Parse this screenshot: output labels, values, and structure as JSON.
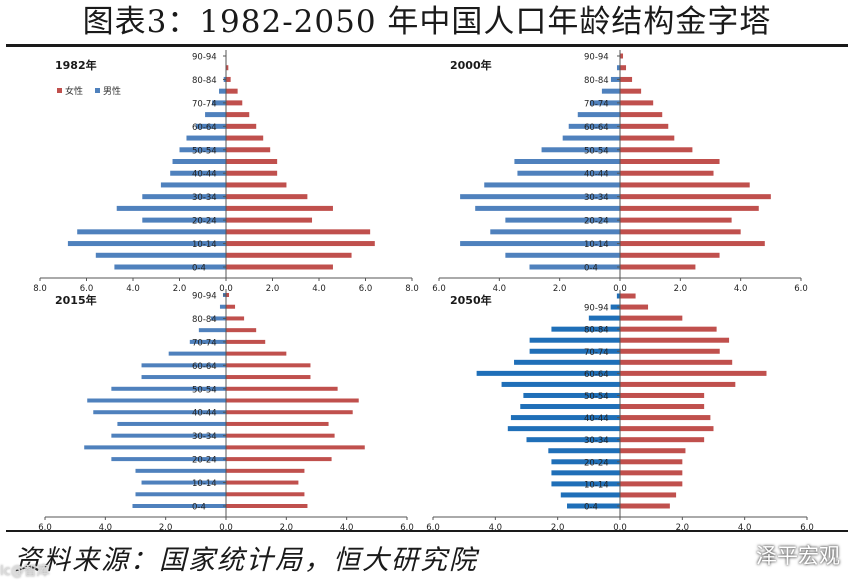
{
  "title": "图表3：1982-2050 年中国人口年龄结构金字塔",
  "source": "资料来源：国家统计局，恒大研究院",
  "watermark": {
    "text": "泽平宏观",
    "left_text": "lc@智库"
  },
  "colors": {
    "female": "#c0504d",
    "male": "#4f81bd",
    "male_2050": "#1f6fb8"
  },
  "chart_data": [
    {
      "type": "bar",
      "title": "1982年",
      "legend": [
        "女性",
        "男性"
      ],
      "legend_position": "top-left",
      "categories": [
        "0-4",
        "5-9",
        "10-14",
        "15-19",
        "20-24",
        "25-29",
        "30-34",
        "35-39",
        "40-44",
        "45-49",
        "50-54",
        "55-59",
        "60-64",
        "65-69",
        "70-74",
        "75-79",
        "80-84",
        "85-89",
        "90-94"
      ],
      "category_labels": [
        "0-4",
        "10-14",
        "20-24",
        "30-34",
        "40-44",
        "50-54",
        "60-64",
        "70-74",
        "80-84",
        "90-94"
      ],
      "series": [
        {
          "name": "女性",
          "values": [
            4.6,
            5.4,
            6.4,
            6.2,
            3.7,
            4.6,
            3.5,
            2.6,
            2.2,
            2.2,
            1.9,
            1.6,
            1.3,
            1.0,
            0.7,
            0.5,
            0.2,
            0.1,
            0.0
          ]
        },
        {
          "name": "男性",
          "values": [
            4.8,
            5.6,
            6.8,
            6.4,
            3.6,
            4.7,
            3.6,
            2.8,
            2.4,
            2.3,
            2.0,
            1.7,
            1.3,
            0.9,
            0.6,
            0.3,
            0.1,
            0.0,
            0.0
          ]
        }
      ],
      "xlim": [
        -8,
        8
      ],
      "xticks": [
        "8.0",
        "6.0",
        "4.0",
        "2.0",
        "0.0",
        "2.0",
        "4.0",
        "6.0",
        "8.0"
      ]
    },
    {
      "type": "bar",
      "title": "2000年",
      "categories": [
        "0-4",
        "5-9",
        "10-14",
        "15-19",
        "20-24",
        "25-29",
        "30-34",
        "35-39",
        "40-44",
        "45-49",
        "50-54",
        "55-59",
        "60-64",
        "65-69",
        "70-74",
        "75-79",
        "80-84",
        "85-89",
        "90-94"
      ],
      "category_labels": [
        "0-4",
        "10-14",
        "20-24",
        "30-34",
        "40-44",
        "50-54",
        "60-64",
        "70-74",
        "80-84",
        "90-94"
      ],
      "series": [
        {
          "name": "女性",
          "values": [
            2.5,
            3.3,
            4.8,
            4.0,
            3.7,
            4.6,
            5.0,
            4.3,
            3.1,
            3.3,
            2.4,
            1.8,
            1.6,
            1.4,
            1.1,
            0.7,
            0.4,
            0.2,
            0.1
          ]
        },
        {
          "name": "男性",
          "values": [
            3.0,
            3.8,
            5.3,
            4.3,
            3.8,
            4.8,
            5.3,
            4.5,
            3.4,
            3.5,
            2.6,
            1.9,
            1.7,
            1.4,
            1.0,
            0.6,
            0.3,
            0.1,
            0.0
          ]
        }
      ],
      "xlim": [
        -6,
        6
      ],
      "xticks": [
        "6.0",
        "4.0",
        "2.0",
        "0.0",
        "2.0",
        "4.0",
        "6.0"
      ]
    },
    {
      "type": "bar",
      "title": "2015年",
      "categories": [
        "0-4",
        "5-9",
        "10-14",
        "15-19",
        "20-24",
        "25-29",
        "30-34",
        "35-39",
        "40-44",
        "45-49",
        "50-54",
        "55-59",
        "60-64",
        "65-69",
        "70-74",
        "75-79",
        "80-84",
        "85-89",
        "90-94"
      ],
      "category_labels": [
        "0-4",
        "10-14",
        "20-24",
        "30-34",
        "40-44",
        "50-54",
        "60-64",
        "70-74",
        "80-84",
        "90-94"
      ],
      "series": [
        {
          "name": "女性",
          "values": [
            2.7,
            2.6,
            2.4,
            2.6,
            3.5,
            4.6,
            3.6,
            3.4,
            4.2,
            4.4,
            3.7,
            2.8,
            2.8,
            2.0,
            1.3,
            1.0,
            0.6,
            0.3,
            0.1
          ]
        },
        {
          "name": "男性",
          "values": [
            3.1,
            3.0,
            2.8,
            3.0,
            3.8,
            4.7,
            3.8,
            3.6,
            4.4,
            4.6,
            3.8,
            2.8,
            2.8,
            1.9,
            1.2,
            0.9,
            0.5,
            0.2,
            0.1
          ]
        }
      ],
      "xlim": [
        -6,
        6
      ],
      "xticks": [
        "6.0",
        "4.0",
        "2.0",
        "0.0",
        "2.0",
        "4.0",
        "6.0"
      ]
    },
    {
      "type": "bar",
      "title": "2050年",
      "categories": [
        "0-4",
        "5-9",
        "10-14",
        "15-19",
        "20-24",
        "25-29",
        "30-34",
        "35-39",
        "40-44",
        "45-49",
        "50-54",
        "55-59",
        "60-64",
        "65-69",
        "70-74",
        "75-79",
        "80-84",
        "85-89",
        "90-94",
        "95+"
      ],
      "category_labels": [
        "0-4",
        "10-14",
        "20-24",
        "30-34",
        "40-44",
        "50-54",
        "60-64",
        "70-74",
        "80-84",
        "90-94"
      ],
      "series": [
        {
          "name": "女性",
          "values": [
            1.6,
            1.8,
            2.0,
            2.0,
            2.0,
            2.1,
            2.7,
            3.0,
            2.9,
            2.7,
            2.7,
            3.7,
            4.7,
            3.6,
            3.2,
            3.5,
            3.1,
            2.0,
            0.9,
            0.5
          ]
        },
        {
          "name": "男性",
          "values": [
            1.7,
            1.9,
            2.2,
            2.2,
            2.2,
            2.3,
            3.0,
            3.6,
            3.5,
            3.2,
            3.1,
            3.8,
            4.6,
            3.4,
            2.9,
            2.9,
            2.2,
            1.0,
            0.3,
            0.1
          ]
        }
      ],
      "xlim": [
        -6,
        6
      ],
      "xticks": [
        "6.0",
        "4.0",
        "2.0",
        "0.0",
        "2.0",
        "4.0",
        "6.0"
      ]
    }
  ]
}
